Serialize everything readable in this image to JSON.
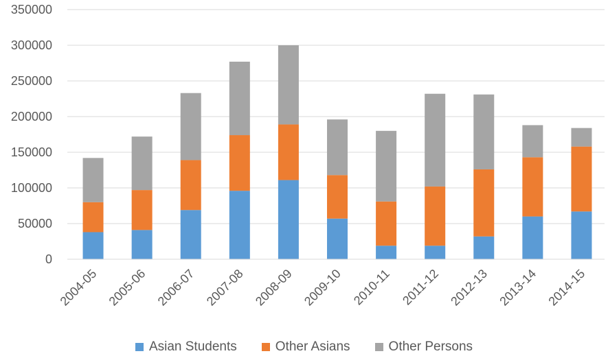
{
  "chart_data": {
    "type": "bar",
    "stacked": true,
    "categories": [
      "2004-05",
      "2005-06",
      "2006-07",
      "2007-08",
      "2008-09",
      "2009-10",
      "2010-11",
      "2011-12",
      "2012-13",
      "2013-14",
      "2014-15"
    ],
    "series": [
      {
        "name": "Asian Students",
        "color": "#5b9bd5",
        "values": [
          38000,
          41000,
          69000,
          96000,
          111000,
          57000,
          19000,
          19000,
          32000,
          60000,
          67000
        ]
      },
      {
        "name": "Other Asians",
        "color": "#ed7d31",
        "values": [
          42000,
          56000,
          70000,
          78000,
          78000,
          61000,
          62000,
          83000,
          94000,
          83000,
          91000
        ]
      },
      {
        "name": "Other Persons",
        "color": "#a5a5a5",
        "values": [
          62000,
          75000,
          94000,
          103000,
          111000,
          78000,
          99000,
          130000,
          105000,
          45000,
          26000
        ]
      }
    ],
    "y_ticks": [
      "0",
      "50000",
      "100000",
      "150000",
      "200000",
      "250000",
      "300000",
      "350000"
    ],
    "ylim": [
      0,
      350000
    ],
    "grid": true,
    "legend_position": "bottom",
    "axis_color": "#d9d9d9",
    "gridline_color": "#d9d9d9"
  }
}
